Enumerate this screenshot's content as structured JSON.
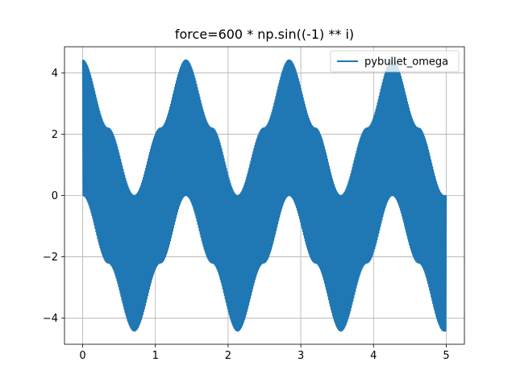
{
  "chart_data": {
    "type": "line",
    "title": "force=600 * np.sin((-1) ** i)",
    "xlabel": "",
    "ylabel": "",
    "xlim": [
      -0.25,
      5.25
    ],
    "ylim": [
      -4.85,
      4.85
    ],
    "xticks": [
      0,
      1,
      2,
      3,
      4,
      5
    ],
    "xtick_labels": [
      "0",
      "1",
      "2",
      "3",
      "4",
      "5"
    ],
    "yticks": [
      -4,
      -2,
      0,
      2,
      4
    ],
    "ytick_labels": [
      "−4",
      "−2",
      "0",
      "2",
      "4"
    ],
    "grid": true,
    "legend": {
      "placement": "top-right",
      "entries": [
        "pybullet_omega"
      ]
    },
    "series": [
      {
        "name": "pybullet_omega",
        "color": "#1f77b4",
        "x_range": [
          0,
          5
        ],
        "description_values": {
          "oscillation": "rapid, alternating sign each step",
          "upper_envelope": [
            [
              0,
              4.42
            ],
            [
              0.35,
              2.2
            ],
            [
              0.71,
              0.0
            ],
            [
              1.07,
              2.2
            ],
            [
              1.42,
              4.42
            ],
            [
              1.78,
              2.2
            ],
            [
              2.13,
              0.0
            ],
            [
              2.49,
              2.2
            ],
            [
              2.84,
              4.42
            ],
            [
              3.2,
              2.2
            ],
            [
              3.55,
              0.0
            ],
            [
              3.91,
              2.2
            ],
            [
              4.26,
              4.42
            ],
            [
              4.62,
              2.2
            ],
            [
              4.97,
              0.0
            ],
            [
              5.0,
              0.0
            ]
          ],
          "lower_envelope": [
            [
              0,
              0.0
            ],
            [
              0.35,
              -2.2
            ],
            [
              0.71,
              -4.42
            ],
            [
              1.07,
              -2.2
            ],
            [
              1.42,
              0.0
            ],
            [
              1.78,
              -2.2
            ],
            [
              2.13,
              -4.42
            ],
            [
              2.49,
              -2.2
            ],
            [
              2.84,
              0.0
            ],
            [
              3.2,
              -2.2
            ],
            [
              3.55,
              -4.42
            ],
            [
              3.91,
              -2.2
            ],
            [
              4.26,
              0.0
            ],
            [
              4.62,
              -2.2
            ],
            [
              4.97,
              -4.42
            ],
            [
              5.0,
              -4.42
            ]
          ]
        }
      }
    ]
  }
}
